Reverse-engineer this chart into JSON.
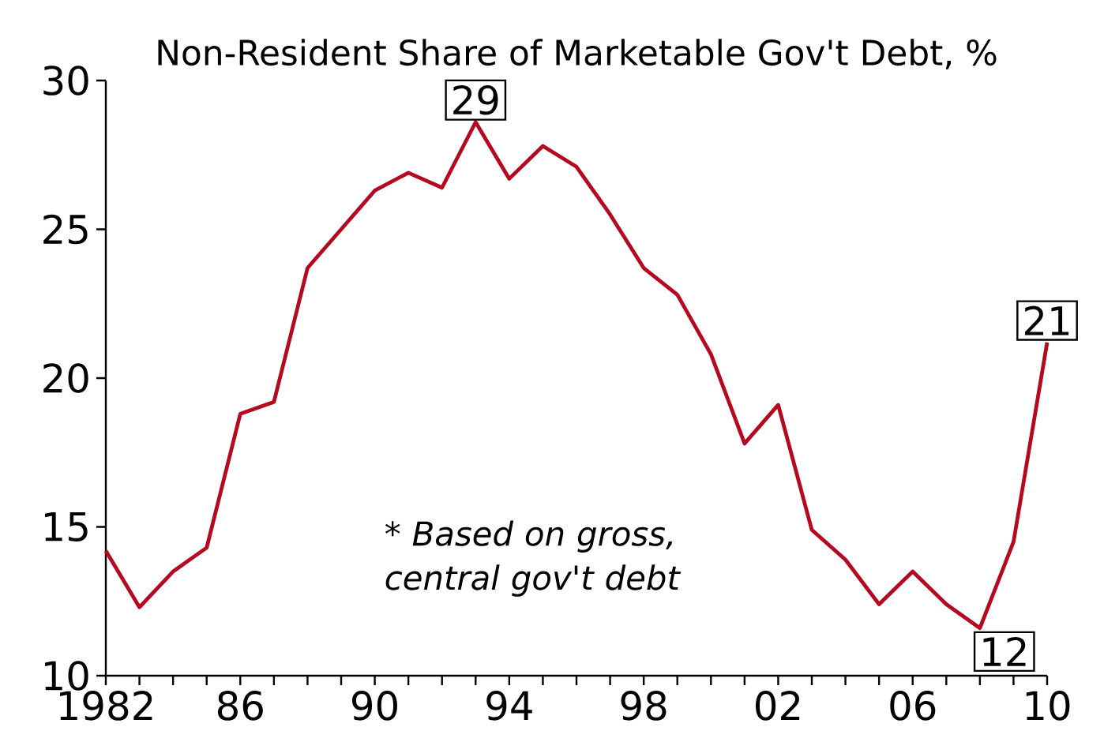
{
  "chart_data": {
    "type": "line",
    "title": "Non-Resident Share of Marketable Gov't Debt, %",
    "x": [
      1982,
      1983,
      1984,
      1985,
      1986,
      1987,
      1988,
      1989,
      1990,
      1991,
      1992,
      1993,
      1994,
      1995,
      1996,
      1997,
      1998,
      1999,
      2000,
      2001,
      2002,
      2003,
      2004,
      2005,
      2006,
      2007,
      2008,
      2009,
      2010
    ],
    "series": [
      {
        "color": "#b5091f",
        "values": [
          14.2,
          12.3,
          13.5,
          14.3,
          18.8,
          19.2,
          23.7,
          25.0,
          26.3,
          26.9,
          26.4,
          28.6,
          26.7,
          27.8,
          27.1,
          25.5,
          23.7,
          22.8,
          20.8,
          17.8,
          19.1,
          14.9,
          13.9,
          12.4,
          13.5,
          12.4,
          11.6,
          14.5,
          21.2
        ],
        "value_labels": [
          null,
          null,
          null,
          null,
          null,
          null,
          null,
          null,
          null,
          null,
          null,
          "29",
          null,
          null,
          null,
          null,
          null,
          null,
          null,
          null,
          null,
          null,
          null,
          null,
          null,
          null,
          "12",
          null,
          "21"
        ]
      }
    ],
    "xlim": [
      1982,
      2010
    ],
    "xticks": [
      {
        "value": 1982,
        "label": "1982"
      },
      {
        "value": 1983,
        "label": null
      },
      {
        "value": 1984,
        "label": null
      },
      {
        "value": 1985,
        "label": null
      },
      {
        "value": 1986,
        "label": "86"
      },
      {
        "value": 1987,
        "label": null
      },
      {
        "value": 1988,
        "label": null
      },
      {
        "value": 1989,
        "label": null
      },
      {
        "value": 1990,
        "label": "90"
      },
      {
        "value": 1991,
        "label": null
      },
      {
        "value": 1992,
        "label": null
      },
      {
        "value": 1993,
        "label": null
      },
      {
        "value": 1994,
        "label": "94"
      },
      {
        "value": 1995,
        "label": null
      },
      {
        "value": 1996,
        "label": null
      },
      {
        "value": 1997,
        "label": null
      },
      {
        "value": 1998,
        "label": "98"
      },
      {
        "value": 1999,
        "label": null
      },
      {
        "value": 2000,
        "label": null
      },
      {
        "value": 2001,
        "label": null
      },
      {
        "value": 2002,
        "label": "02"
      },
      {
        "value": 2003,
        "label": null
      },
      {
        "value": 2004,
        "label": null
      },
      {
        "value": 2005,
        "label": null
      },
      {
        "value": 2006,
        "label": "06"
      },
      {
        "value": 2007,
        "label": null
      },
      {
        "value": 2008,
        "label": null
      },
      {
        "value": 2009,
        "label": null
      },
      {
        "value": 2010,
        "label": "10"
      }
    ],
    "ylim": [
      10,
      30
    ],
    "yticks": [
      10,
      15,
      20,
      25,
      30
    ],
    "annotations": [
      "* Based on gross, central gov't debt"
    ],
    "marker": "none",
    "line_style": "solid"
  }
}
